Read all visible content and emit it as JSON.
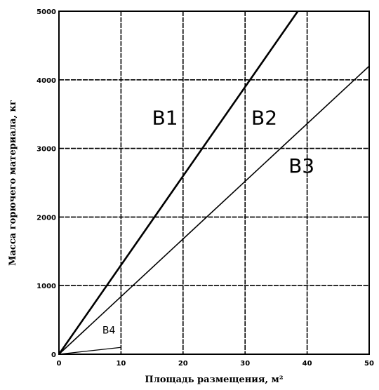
{
  "chart_data": {
    "type": "line",
    "xlabel": "Площадь размещения, м²",
    "ylabel": "Масса горючего материала, кг",
    "xlim": [
      0,
      50
    ],
    "ylim": [
      0,
      5000
    ],
    "x_ticks": [
      "0",
      "10",
      "20",
      "30",
      "40",
      "50"
    ],
    "y_ticks": [
      "0",
      "1000",
      "2000",
      "3000",
      "4000",
      "5000"
    ],
    "grid": true,
    "series": [
      {
        "values": [
          [
            0,
            0
          ],
          [
            38.5,
            5000
          ]
        ]
      },
      {
        "values": [
          [
            0,
            0
          ],
          [
            50,
            4200
          ]
        ]
      },
      {
        "values": [
          [
            0,
            0
          ],
          [
            10,
            100
          ]
        ]
      }
    ],
    "annotations": [
      {
        "text": "B1",
        "x": 15,
        "y": 3350
      },
      {
        "text": "B2",
        "x": 31,
        "y": 3350
      },
      {
        "text": "B3",
        "x": 37,
        "y": 2650
      },
      {
        "text": "B4",
        "x": 7,
        "y": 300
      }
    ]
  }
}
